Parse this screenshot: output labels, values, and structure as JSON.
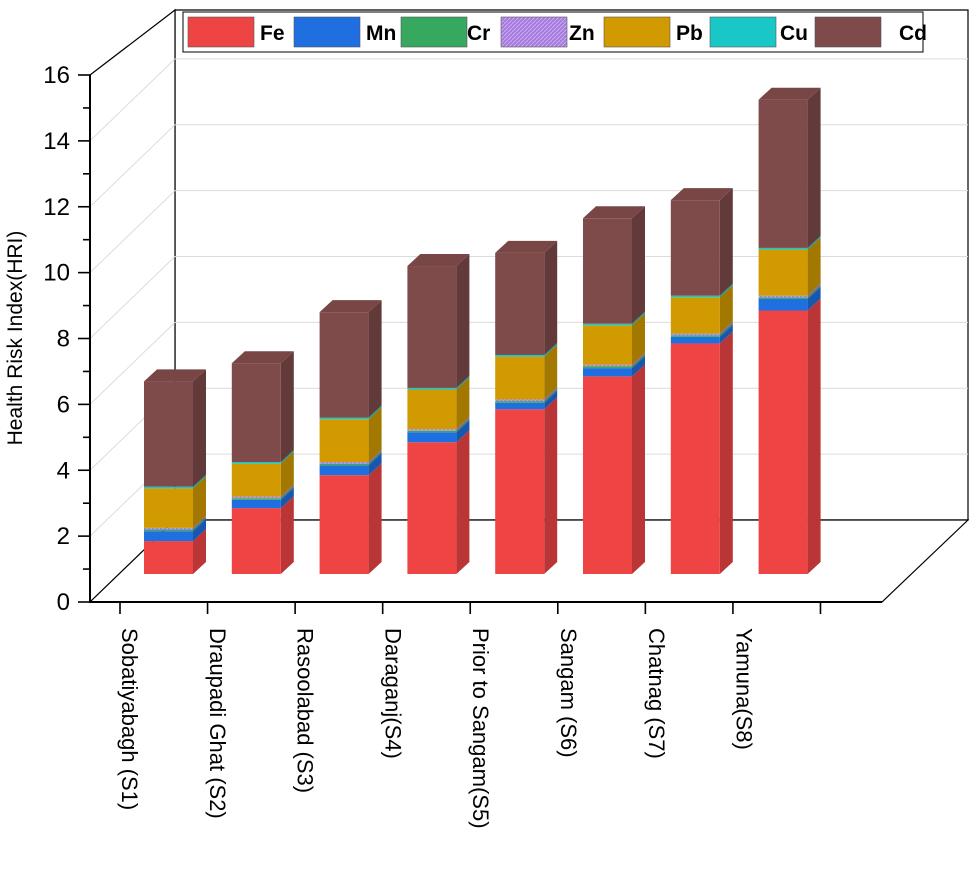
{
  "chart_data": {
    "type": "bar",
    "stacked": true,
    "three_d": true,
    "title": "",
    "xlabel": "",
    "ylabel": "Health Risk Index(HRI)",
    "ylim": [
      0,
      16
    ],
    "yticks": [
      "0",
      "2",
      "4",
      "6",
      "8",
      "10",
      "12",
      "14",
      "16"
    ],
    "grid": true,
    "legend_position": "top",
    "categories": [
      "Sobatiyabagh (S1)",
      "Draupadi Ghat (S2)",
      "Rasoolabad (S3)",
      "Daraganj(S4)",
      "Prior to Sangam(S5)",
      "Sangam (S6)",
      "Chatnag (S7)",
      "Yamuna(S8)"
    ],
    "series": [
      {
        "name": "Fe",
        "color": "#ee4444",
        "values": [
          1.0,
          2.0,
          3.0,
          4.0,
          5.0,
          6.0,
          7.0,
          8.0
        ]
      },
      {
        "name": "Mn",
        "color": "#1f6fe0",
        "values": [
          0.3,
          0.25,
          0.3,
          0.3,
          0.2,
          0.25,
          0.2,
          0.35
        ]
      },
      {
        "name": "Cr",
        "color": "#36a85f",
        "values": [
          0.05,
          0.05,
          0.05,
          0.05,
          0.05,
          0.05,
          0.05,
          0.05
        ]
      },
      {
        "name": "Zn",
        "color": "#a77cdf",
        "values": [
          0.05,
          0.05,
          0.05,
          0.05,
          0.05,
          0.05,
          0.05,
          0.05
        ]
      },
      {
        "name": "Pb",
        "color": "#d09a00",
        "values": [
          1.2,
          1.0,
          1.3,
          1.2,
          1.3,
          1.2,
          1.1,
          1.4
        ]
      },
      {
        "name": "Cu",
        "color": "#19c7c7",
        "values": [
          0.05,
          0.05,
          0.05,
          0.05,
          0.05,
          0.05,
          0.05,
          0.05
        ]
      },
      {
        "name": "Cd",
        "color": "#7f4a4a",
        "values": [
          3.2,
          3.0,
          3.2,
          3.7,
          3.1,
          3.2,
          2.9,
          4.5
        ]
      }
    ]
  }
}
